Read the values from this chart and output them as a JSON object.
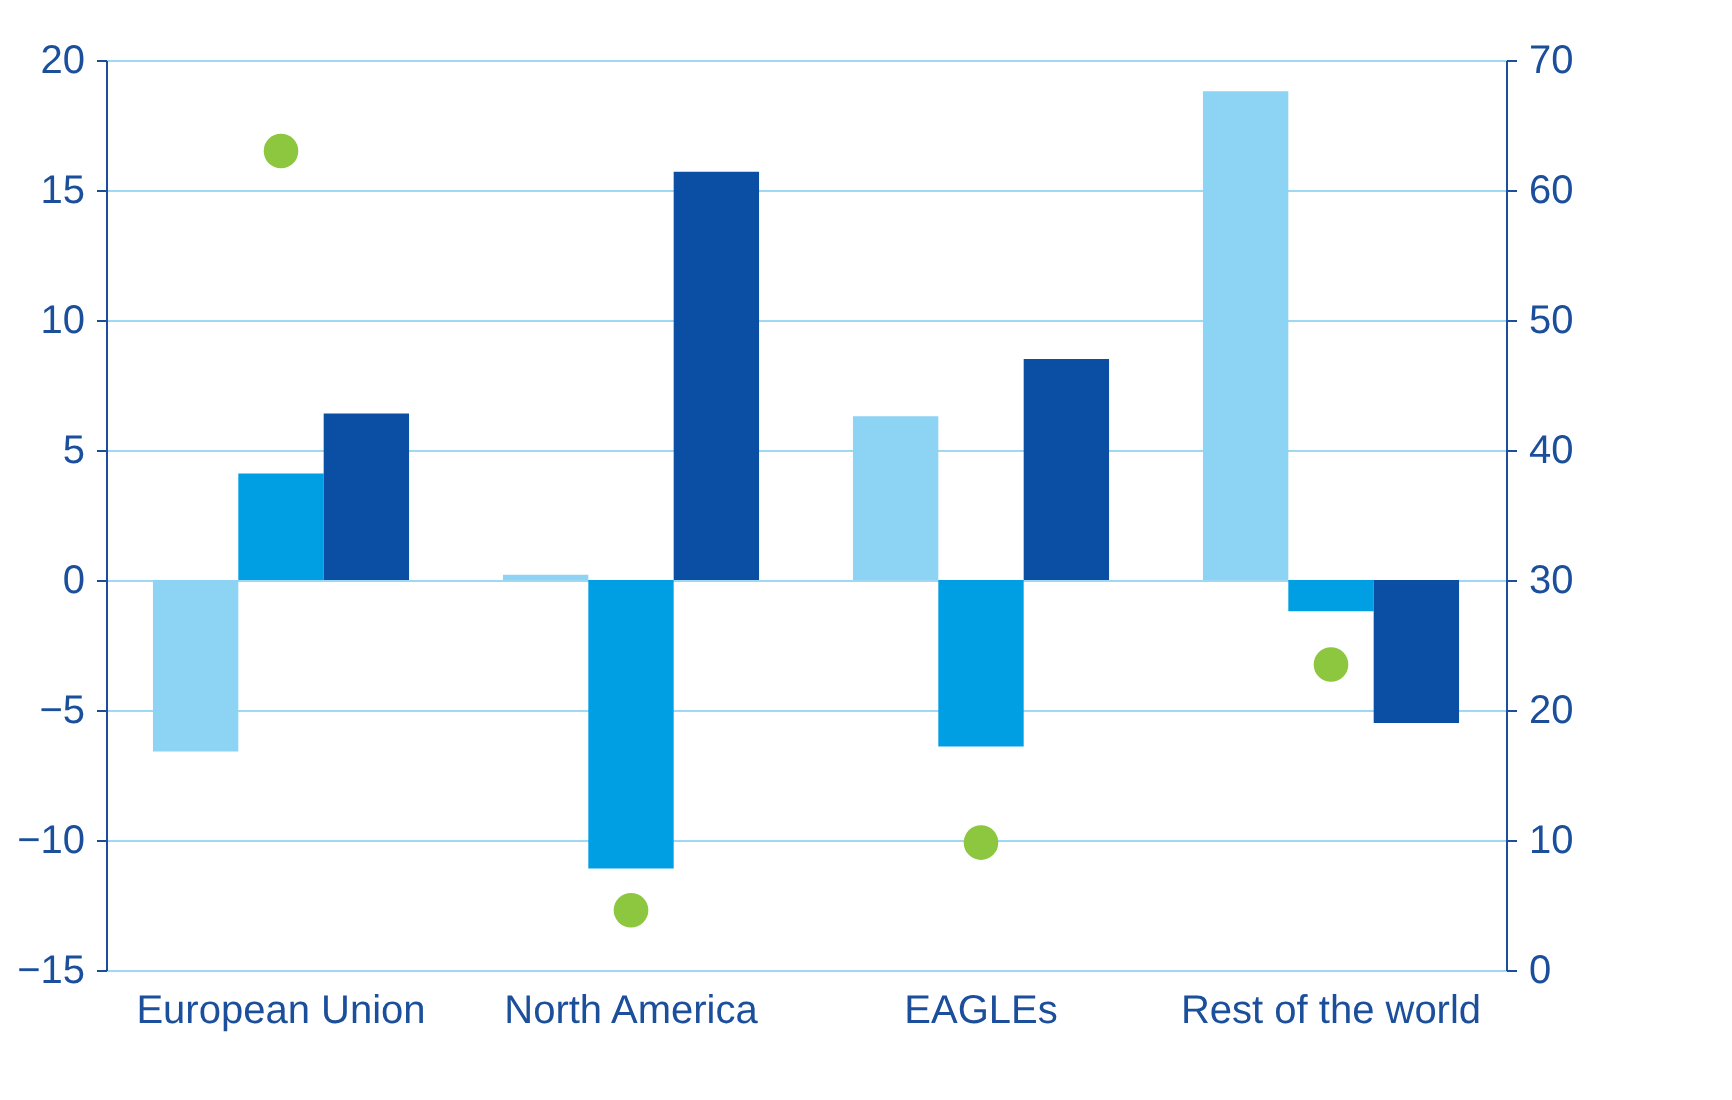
{
  "chart_data": {
    "type": "bar",
    "categories": [
      "European Union",
      "North America",
      "EAGLEs",
      "Rest of the world"
    ],
    "series": [
      {
        "color": "#8dd3f3",
        "values": [
          -6.6,
          0.2,
          6.3,
          18.8
        ]
      },
      {
        "color": "#009fe3",
        "values": [
          4.1,
          -11.1,
          -6.4,
          -1.2
        ]
      },
      {
        "color": "#0a4fa3",
        "values": [
          6.4,
          15.7,
          8.5,
          -5.5
        ]
      },
      {
        "type": "scatter",
        "axis": "y2",
        "color": "#8dc63f",
        "values": [
          63,
          4.6,
          9.8,
          23.5
        ]
      }
    ],
    "ylim": [
      -15,
      20
    ],
    "yticks": [
      -15,
      -10,
      -5,
      0,
      5,
      10,
      15,
      20
    ],
    "y2lim": [
      0,
      70
    ],
    "y2ticks": [
      0,
      10,
      20,
      30,
      40,
      50,
      60,
      70
    ],
    "grid": "y",
    "legend": false,
    "marker": "circle"
  }
}
